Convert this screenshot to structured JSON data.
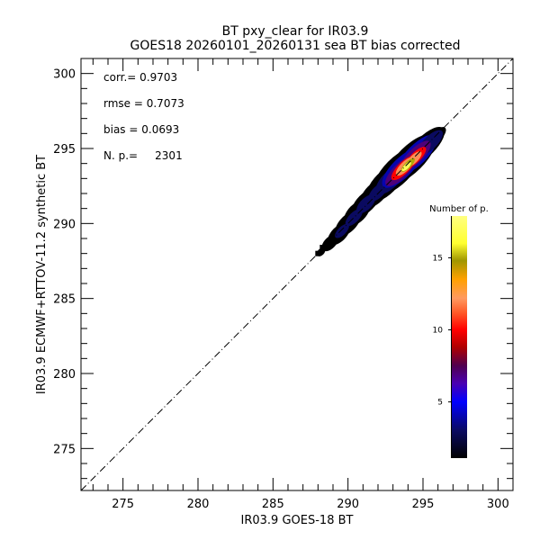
{
  "chart_data": {
    "type": "heatmap",
    "subtype": "density-scatter",
    "title": "BT pxy_clear for IR03.9",
    "subtitle": "GOES18 20260101_20260131 sea BT bias corrected",
    "xlabel": "IR03.9 GOES-18 BT",
    "ylabel": "IR03.9 ECMWF+RTTOV-11.2 synthetic BT",
    "xlim": [
      272.2,
      301
    ],
    "ylim": [
      272.2,
      301
    ],
    "x_ticks": [
      275,
      280,
      285,
      290,
      295,
      300
    ],
    "y_ticks": [
      275,
      280,
      285,
      290,
      295,
      300
    ],
    "x_tick_labels": [
      "275",
      "280",
      "285",
      "290",
      "295",
      "300"
    ],
    "y_tick_labels": [
      "275",
      "280",
      "285",
      "290",
      "295",
      "300"
    ],
    "minor_tick_step": 1,
    "grid": false,
    "identity_line": {
      "style": "dash-dot",
      "from": 272.2,
      "to": 301
    },
    "stats": [
      {
        "label": "corr.= ",
        "value": "0.9703"
      },
      {
        "label": "rmse = ",
        "value": "0.7073"
      },
      {
        "label": "bias = ",
        "value": "0.0693"
      },
      {
        "label": "N. p.=     ",
        "value": "2301"
      }
    ],
    "density_region": {
      "x_range": [
        288.0,
        296.5
      ],
      "y_range": [
        288.0,
        296.2
      ],
      "peak": {
        "x": 294.0,
        "y": 293.9,
        "count": 18
      },
      "blobs": [
        {
          "x": 288.2,
          "y": 288.1,
          "rx": 0.25,
          "ry": 0.2,
          "level": 1
        },
        {
          "x": 288.8,
          "y": 288.7,
          "rx": 0.5,
          "ry": 0.35,
          "level": 1
        },
        {
          "x": 289.4,
          "y": 289.3,
          "rx": 0.7,
          "ry": 0.45,
          "level": 1
        },
        {
          "x": 290.0,
          "y": 290.0,
          "rx": 0.8,
          "ry": 0.5,
          "level": 1
        },
        {
          "x": 290.6,
          "y": 290.7,
          "rx": 0.8,
          "ry": 0.55,
          "level": 1
        },
        {
          "x": 291.2,
          "y": 291.4,
          "rx": 0.9,
          "ry": 0.55,
          "level": 1
        },
        {
          "x": 291.8,
          "y": 292.0,
          "rx": 0.9,
          "ry": 0.6,
          "level": 1
        },
        {
          "x": 292.5,
          "y": 292.7,
          "rx": 1.2,
          "ry": 0.7,
          "level": 1
        },
        {
          "x": 293.3,
          "y": 293.5,
          "rx": 1.5,
          "ry": 0.8,
          "level": 1
        },
        {
          "x": 294.2,
          "y": 294.3,
          "rx": 1.6,
          "ry": 0.8,
          "level": 1
        },
        {
          "x": 295.2,
          "y": 295.2,
          "rx": 1.2,
          "ry": 0.6,
          "level": 1
        },
        {
          "x": 296.0,
          "y": 295.9,
          "rx": 0.5,
          "ry": 0.3,
          "level": 1
        },
        {
          "x": 289.6,
          "y": 289.5,
          "rx": 0.45,
          "ry": 0.25,
          "level": 3
        },
        {
          "x": 290.4,
          "y": 290.4,
          "rx": 0.55,
          "ry": 0.3,
          "level": 3
        },
        {
          "x": 291.2,
          "y": 291.3,
          "rx": 0.6,
          "ry": 0.35,
          "level": 3
        },
        {
          "x": 292.0,
          "y": 292.1,
          "rx": 0.6,
          "ry": 0.35,
          "level": 3
        },
        {
          "x": 292.8,
          "y": 292.9,
          "rx": 0.9,
          "ry": 0.5,
          "level": 3
        },
        {
          "x": 293.6,
          "y": 293.7,
          "rx": 1.3,
          "ry": 0.6,
          "level": 4
        },
        {
          "x": 294.6,
          "y": 294.6,
          "rx": 1.3,
          "ry": 0.6,
          "level": 4
        },
        {
          "x": 295.5,
          "y": 295.4,
          "rx": 0.8,
          "ry": 0.4,
          "level": 3
        },
        {
          "x": 293.5,
          "y": 293.5,
          "rx": 1.0,
          "ry": 0.45,
          "level": 7
        },
        {
          "x": 294.5,
          "y": 294.5,
          "rx": 1.0,
          "ry": 0.45,
          "level": 7
        },
        {
          "x": 293.7,
          "y": 293.7,
          "rx": 0.8,
          "ry": 0.35,
          "level": 10
        },
        {
          "x": 294.5,
          "y": 294.4,
          "rx": 0.7,
          "ry": 0.3,
          "level": 10
        },
        {
          "x": 293.8,
          "y": 293.8,
          "rx": 0.6,
          "ry": 0.28,
          "level": 12
        },
        {
          "x": 294.4,
          "y": 294.3,
          "rx": 0.5,
          "ry": 0.24,
          "level": 12
        },
        {
          "x": 294.0,
          "y": 293.9,
          "rx": 0.45,
          "ry": 0.2,
          "level": 15
        },
        {
          "x": 293.9,
          "y": 293.8,
          "rx": 0.3,
          "ry": 0.14,
          "level": 17
        }
      ]
    },
    "colorbar": {
      "label": "Number of p.",
      "range": [
        1.1,
        17.9
      ],
      "ticks": [
        5,
        10,
        15
      ],
      "tick_labels": [
        "5",
        "10",
        "15"
      ],
      "colormap": [
        {
          "v": 1.1,
          "color": "#000000"
        },
        {
          "v": 3.0,
          "color": "#0a0a60"
        },
        {
          "v": 5.0,
          "color": "#0000ff"
        },
        {
          "v": 6.3,
          "color": "#4a00b0"
        },
        {
          "v": 7.5,
          "color": "#500050"
        },
        {
          "v": 8.8,
          "color": "#b00000"
        },
        {
          "v": 10.0,
          "color": "#ff0000"
        },
        {
          "v": 11.2,
          "color": "#ff5a28"
        },
        {
          "v": 12.2,
          "color": "#ff9a60"
        },
        {
          "v": 13.5,
          "color": "#ffa000"
        },
        {
          "v": 14.8,
          "color": "#a09600"
        },
        {
          "v": 16.0,
          "color": "#ffff30"
        },
        {
          "v": 17.9,
          "color": "#ffff80"
        }
      ]
    }
  }
}
